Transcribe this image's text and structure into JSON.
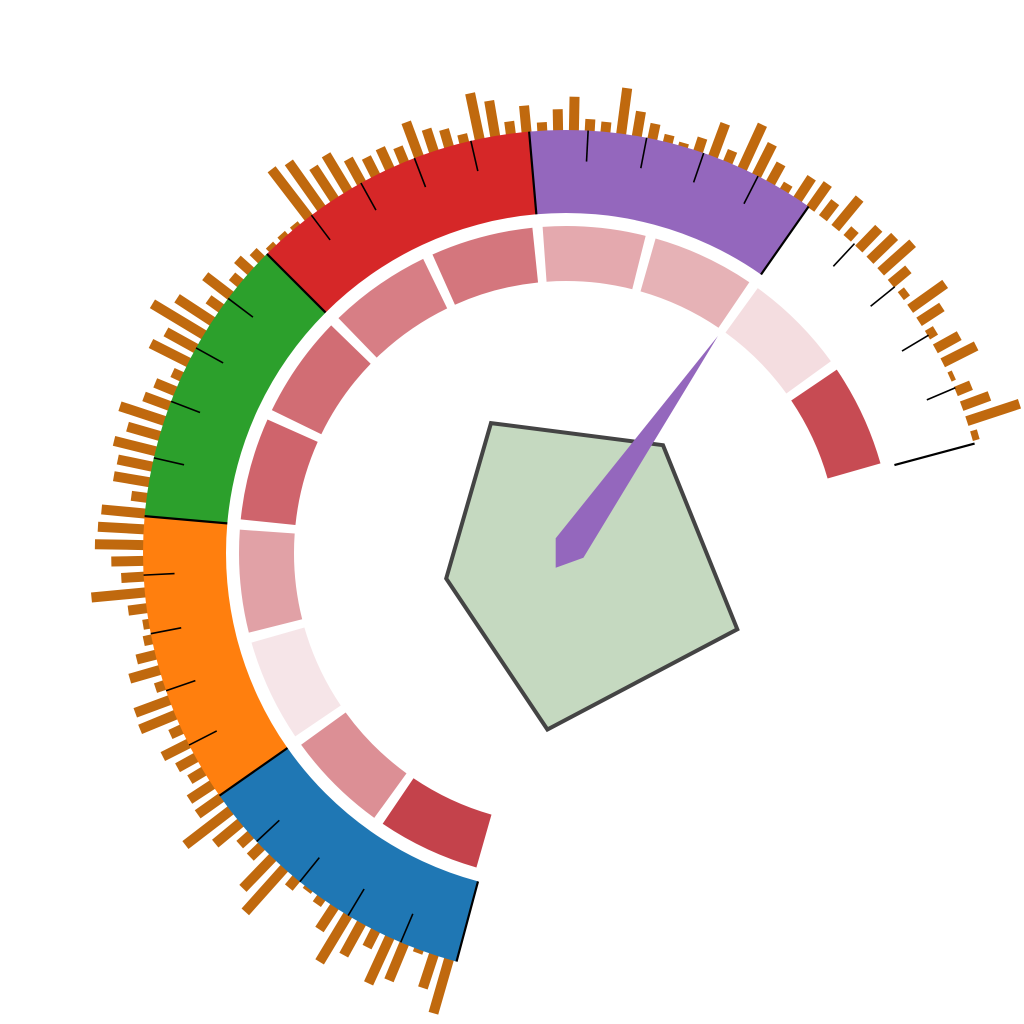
{
  "chart_data": {
    "type": "gauge",
    "title": "",
    "angle_range_deg": [
      -165,
      75
    ],
    "radial_bars": {
      "color": "#c0690e",
      "count": 112,
      "values": [
        0.73,
        0.46,
        0.06,
        0.52,
        0.66,
        0.25,
        0.48,
        0.71,
        0.36,
        0.11,
        0.05,
        0.16,
        0.76,
        0.56,
        0.21,
        0.2,
        0.43,
        0.74,
        0.38,
        0.36,
        0.22,
        0.28,
        0.38,
        0.17,
        0.5,
        0.48,
        0.13,
        0.41,
        0.26,
        0.12,
        0.09,
        0.25,
        0.7,
        0.3,
        0.42,
        0.63,
        0.6,
        0.57,
        0.21,
        0.47,
        0.46,
        0.56,
        0.44,
        0.61,
        0.36,
        0.29,
        0.14,
        0.55,
        0.45,
        0.78,
        0.55,
        0.21,
        0.42,
        0.15,
        0.24,
        0.16,
        0.07,
        0.07,
        0.06,
        0.79,
        0.73,
        0.5,
        0.55,
        0.36,
        0.27,
        0.3,
        0.22,
        0.48,
        0.31,
        0.24,
        0.12,
        0.61,
        0.47,
        0.17,
        0.35,
        0.12,
        0.28,
        0.44,
        0.16,
        0.14,
        0.6,
        0.33,
        0.21,
        0.11,
        0.06,
        0.19,
        0.46,
        0.17,
        0.63,
        0.46,
        0.29,
        0.11,
        0.34,
        0.39,
        0.26,
        0.49,
        0.15,
        0.37,
        0.44,
        0.55,
        0.29,
        0.1,
        0.55,
        0.35,
        0.12,
        0.35,
        0.48,
        0.06,
        0.21,
        0.38,
        0.71,
        0.09
      ]
    },
    "color_bands": [
      {
        "start": 0,
        "end": 1,
        "color": "#1f77b4"
      },
      {
        "start": 1,
        "end": 2,
        "color": "#ff7f0e"
      },
      {
        "start": 2,
        "end": 3,
        "color": "#2ca02c"
      },
      {
        "start": 3,
        "end": 4,
        "color": "#d62728"
      },
      {
        "start": 4,
        "end": 5,
        "color": "#9467bd"
      }
    ],
    "scale": {
      "min": 0,
      "max": 6,
      "major_every": 1,
      "minor_per_major": 5
    },
    "heat_segments": {
      "values": [
        1.0,
        0.55,
        0.05,
        0.45,
        0.8,
        0.75,
        0.65,
        0.7,
        0.4,
        0.35,
        0.1,
        0.95
      ],
      "color_high": "#c4424b",
      "color_low": "#f9eef0"
    },
    "needle": {
      "value": 5.0,
      "color": "#9467bd"
    },
    "radar": {
      "values": [
        0.6,
        0.58,
        0.75,
        0.71,
        0.49
      ],
      "fill": "#c5d9c0",
      "stroke": "#444444"
    }
  }
}
